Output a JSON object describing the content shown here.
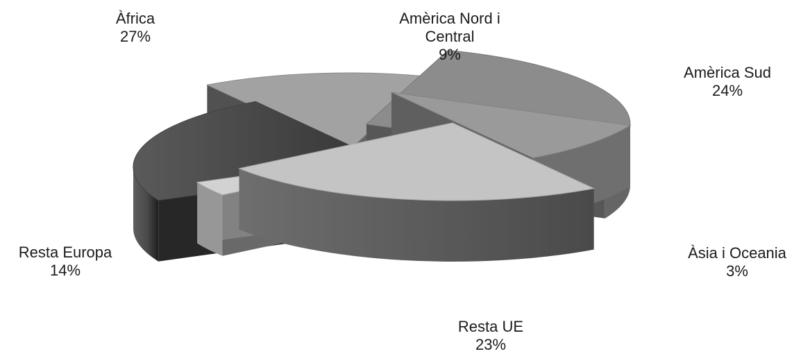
{
  "chart_data": {
    "type": "pie",
    "title": "",
    "categories": [
      "Àfrica",
      "Amèrica Nord i Central",
      "Amèrica Sud",
      "Àsia i Oceania",
      "Resta UE",
      "Resta Europa"
    ],
    "values": [
      27,
      9,
      24,
      3,
      23,
      14
    ],
    "value_unit": "%",
    "legend": "none",
    "labels": [
      {
        "name": "Àfrica",
        "pct": "27%"
      },
      {
        "name": "Amèrica Nord i Central",
        "pct": "9%"
      },
      {
        "name": "Amèrica Sud",
        "pct": "24%"
      },
      {
        "name": "Àsia i Oceania",
        "pct": "3%"
      },
      {
        "name": "Resta UE",
        "pct": "23%"
      },
      {
        "name": "Resta Europa",
        "pct": "14%"
      }
    ],
    "colors": [
      "#8c8c8c",
      "#9a9a9a",
      "#c4c4c4",
      "#d2d2d2",
      "#4e4e4e",
      "#a2a2a2"
    ],
    "style": "3d-exploded"
  }
}
